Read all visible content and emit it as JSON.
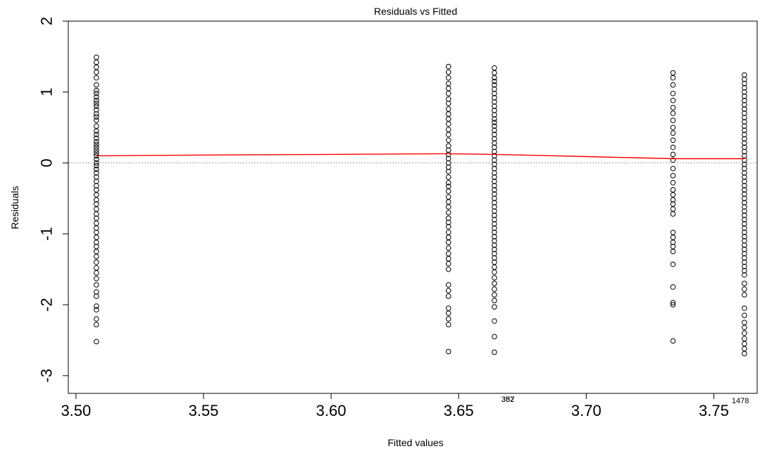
{
  "chart_data": {
    "type": "scatter",
    "title": "Residuals vs Fitted",
    "xlabel": "Fitted values",
    "ylabel": "Residuals",
    "xlim": [
      3.497,
      3.767
    ],
    "ylim": [
      -3.25,
      2.0
    ],
    "x_ticks": [
      3.5,
      3.55,
      3.6,
      3.65,
      3.7,
      3.75
    ],
    "x_tick_labels": [
      "3.50",
      "3.55",
      "3.60",
      "3.65",
      "3.70",
      "3.75"
    ],
    "y_ticks": [
      -3,
      -2,
      -1,
      0,
      1,
      2
    ],
    "y_tick_labels": [
      "-3",
      "-2",
      "-1",
      "0",
      "1",
      "2"
    ],
    "reference_line": {
      "y": 0,
      "style": "dotted",
      "color": "#a0a0a0"
    },
    "smoother": {
      "color": "#ff0000",
      "points": [
        {
          "x": 3.508,
          "y": 0.1
        },
        {
          "x": 3.545,
          "y": 0.11
        },
        {
          "x": 3.6,
          "y": 0.12
        },
        {
          "x": 3.646,
          "y": 0.13
        },
        {
          "x": 3.664,
          "y": 0.12
        },
        {
          "x": 3.7,
          "y": 0.09
        },
        {
          "x": 3.734,
          "y": 0.06
        },
        {
          "x": 3.762,
          "y": 0.06
        }
      ]
    },
    "point_color": "#000000",
    "series": [
      {
        "x": 3.508,
        "residuals": [
          1.49,
          1.42,
          1.35,
          1.28,
          1.2,
          1.1,
          1.02,
          0.98,
          0.93,
          0.88,
          0.84,
          0.8,
          0.75,
          0.69,
          0.65,
          0.6,
          0.52,
          0.45,
          0.4,
          0.35,
          0.3,
          0.26,
          0.22,
          0.18,
          0.14,
          0.1,
          0.05,
          0.0,
          -0.04,
          -0.09,
          -0.14,
          -0.2,
          -0.26,
          -0.32,
          -0.38,
          -0.45,
          -0.52,
          -0.58,
          -0.65,
          -0.72,
          -0.78,
          -0.85,
          -0.92,
          -0.98,
          -1.05,
          -1.12,
          -1.18,
          -1.25,
          -1.32,
          -1.4,
          -1.48,
          -1.55,
          -1.63,
          -1.72,
          -1.82,
          -1.88,
          -2.02,
          -2.07,
          -2.2,
          -2.28,
          -2.52
        ]
      },
      {
        "x": 3.646,
        "residuals": [
          1.36,
          1.28,
          1.2,
          1.12,
          1.05,
          0.98,
          0.9,
          0.84,
          0.76,
          0.69,
          0.62,
          0.55,
          0.47,
          0.4,
          0.32,
          0.24,
          0.18,
          0.12,
          0.06,
          0.0,
          -0.06,
          -0.12,
          -0.2,
          -0.28,
          -0.33,
          -0.4,
          -0.48,
          -0.55,
          -0.62,
          -0.7,
          -0.78,
          -0.84,
          -0.9,
          -0.98,
          -1.05,
          -1.12,
          -1.2,
          -1.28,
          -1.35,
          -1.42,
          -1.5,
          -1.72,
          -1.8,
          -1.88,
          -2.05,
          -2.12,
          -2.2,
          -2.28,
          -2.66
        ]
      },
      {
        "x": 3.664,
        "residuals": [
          1.34,
          1.27,
          1.2,
          1.15,
          1.1,
          1.04,
          0.98,
          0.92,
          0.86,
          0.8,
          0.74,
          0.68,
          0.62,
          0.57,
          0.52,
          0.46,
          0.4,
          0.34,
          0.28,
          0.22,
          0.16,
          0.1,
          0.04,
          -0.02,
          -0.08,
          -0.14,
          -0.2,
          -0.26,
          -0.32,
          -0.38,
          -0.44,
          -0.5,
          -0.56,
          -0.62,
          -0.68,
          -0.74,
          -0.8,
          -0.86,
          -0.92,
          -0.98,
          -1.04,
          -1.1,
          -1.16,
          -1.22,
          -1.28,
          -1.34,
          -1.4,
          -1.47,
          -1.54,
          -1.62,
          -1.7,
          -1.78,
          -1.86,
          -1.94,
          -2.03,
          -2.23,
          -2.45,
          -2.67
        ]
      },
      {
        "x": 3.734,
        "residuals": [
          1.27,
          1.2,
          1.1,
          0.98,
          0.88,
          0.78,
          0.7,
          0.6,
          0.5,
          0.42,
          0.32,
          0.22,
          0.12,
          0.04,
          -0.08,
          -0.18,
          -0.28,
          -0.38,
          -0.45,
          -0.52,
          -0.58,
          -0.65,
          -0.72,
          -0.98,
          -1.05,
          -1.12,
          -1.18,
          -1.25,
          -1.43,
          -1.75,
          -1.97,
          -2.0,
          -2.51
        ]
      },
      {
        "x": 3.762,
        "residuals": [
          1.24,
          1.18,
          1.12,
          1.06,
          1.0,
          0.94,
          0.88,
          0.82,
          0.76,
          0.7,
          0.64,
          0.58,
          0.52,
          0.46,
          0.4,
          0.34,
          0.28,
          0.22,
          0.16,
          0.1,
          0.04,
          -0.02,
          -0.08,
          -0.14,
          -0.2,
          -0.26,
          -0.32,
          -0.38,
          -0.44,
          -0.5,
          -0.56,
          -0.62,
          -0.68,
          -0.74,
          -0.8,
          -0.86,
          -0.92,
          -0.98,
          -1.04,
          -1.1,
          -1.16,
          -1.22,
          -1.28,
          -1.34,
          -1.4,
          -1.46,
          -1.52,
          -1.58,
          -1.7,
          -1.78,
          -1.86,
          -2.05,
          -2.15,
          -2.25,
          -2.32,
          -2.4,
          -2.48,
          -2.55,
          -2.62,
          -2.69
        ]
      }
    ],
    "point_labels": [
      {
        "x": 3.664,
        "y": -3.33,
        "text": "387"
      },
      {
        "x": 3.664,
        "y": -3.33,
        "text": "352"
      },
      {
        "x": 3.762,
        "y": -3.35,
        "text": "1478"
      }
    ]
  }
}
